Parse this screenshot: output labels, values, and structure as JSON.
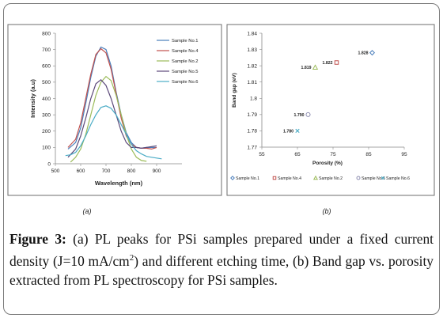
{
  "panel_a_label": "(a)",
  "panel_b_label": "(b)",
  "caption": {
    "figure_label": "Figure 3:",
    "part1": " (a) PL peaks for PSi samples prepared under a fixed current density (J=10 mA/cm",
    "superscript": "2",
    "part2": ") and different etching time, (b) Band gap vs. porosity extracted from PL spectroscopy for PSi samples."
  },
  "chart_data": [
    {
      "type": "line",
      "title": "",
      "xlabel": "Wavelength (nm)",
      "ylabel": "Intensity (a.u)",
      "xlim": [
        500,
        1000
      ],
      "ylim": [
        0,
        800
      ],
      "xticks": [
        500,
        600,
        700,
        800,
        900
      ],
      "yticks": [
        0,
        100,
        200,
        300,
        400,
        500,
        600,
        700,
        800
      ],
      "legend_position": "right",
      "series": [
        {
          "name": "Sample No.1",
          "color": "#4a7ebb",
          "x": [
            550,
            580,
            600,
            620,
            640,
            660,
            680,
            700,
            720,
            740,
            760,
            780,
            800,
            820,
            840,
            860,
            880,
            900
          ],
          "y": [
            90,
            130,
            220,
            370,
            530,
            660,
            715,
            700,
            600,
            440,
            300,
            190,
            130,
            100,
            95,
            100,
            100,
            100
          ]
        },
        {
          "name": "Sample No.4",
          "color": "#c0504d",
          "x": [
            550,
            580,
            600,
            620,
            640,
            660,
            680,
            700,
            720,
            740,
            760,
            780,
            800,
            820,
            840,
            860,
            880,
            900
          ],
          "y": [
            100,
            150,
            250,
            400,
            550,
            670,
            705,
            680,
            580,
            430,
            280,
            170,
            120,
            100,
            95,
            95,
            90,
            100
          ]
        },
        {
          "name": "Sample No.2",
          "color": "#9bbb59",
          "x": [
            560,
            580,
            600,
            620,
            640,
            660,
            680,
            700,
            720,
            740,
            760,
            780,
            800,
            820,
            840,
            860
          ],
          "y": [
            10,
            40,
            90,
            180,
            300,
            420,
            500,
            535,
            510,
            420,
            300,
            180,
            90,
            40,
            20,
            15
          ]
        },
        {
          "name": "Sample No.5",
          "color": "#5c4a7a",
          "x": [
            550,
            580,
            600,
            620,
            640,
            660,
            680,
            700,
            720,
            740,
            760,
            780,
            800,
            820,
            840,
            860,
            880,
            900
          ],
          "y": [
            40,
            90,
            170,
            280,
            400,
            490,
            515,
            480,
            400,
            300,
            200,
            130,
            100,
            100,
            95,
            100,
            105,
            110
          ]
        },
        {
          "name": "Sample No.6",
          "color": "#4bacc6",
          "x": [
            540,
            560,
            580,
            600,
            620,
            640,
            660,
            680,
            700,
            720,
            740,
            760,
            780,
            800,
            820,
            840,
            860,
            880,
            900,
            920
          ],
          "y": [
            50,
            55,
            70,
            110,
            170,
            240,
            300,
            345,
            355,
            340,
            300,
            240,
            180,
            120,
            80,
            60,
            45,
            40,
            35,
            30
          ]
        }
      ]
    },
    {
      "type": "scatter",
      "title": "",
      "xlabel": "Porosity (%)",
      "ylabel": "Band gap (eV)",
      "xlim": [
        55,
        95
      ],
      "ylim": [
        1.77,
        1.84
      ],
      "xticks": [
        55,
        65,
        75,
        85,
        95
      ],
      "yticks": [
        1.77,
        1.78,
        1.79,
        1.8,
        1.81,
        1.82,
        1.83,
        1.84
      ],
      "ytick_labels": [
        "1.77",
        "1.78",
        "1.79",
        "1.8",
        "1.81",
        "1.82",
        "1.83",
        "1.84"
      ],
      "legend_position": "bottom",
      "points": [
        {
          "name": "Sample No.1",
          "x": 86,
          "y": 1.828,
          "label": "1.828",
          "marker": "diamond",
          "color": "#4a7ebb"
        },
        {
          "name": "Sample No.4",
          "x": 76,
          "y": 1.822,
          "label": "1.822",
          "marker": "square",
          "color": "#c0504d"
        },
        {
          "name": "Sample No.2",
          "x": 70,
          "y": 1.819,
          "label": "1.819",
          "marker": "triangle",
          "color": "#9bbb59"
        },
        {
          "name": "Sample No.5",
          "x": 68,
          "y": 1.79,
          "label": "1.790",
          "marker": "circle",
          "color": "#8c8cb0"
        },
        {
          "name": "Sample No.6",
          "x": 65,
          "y": 1.78,
          "label": "1.780",
          "marker": "x",
          "color": "#4bacc6"
        }
      ]
    }
  ]
}
